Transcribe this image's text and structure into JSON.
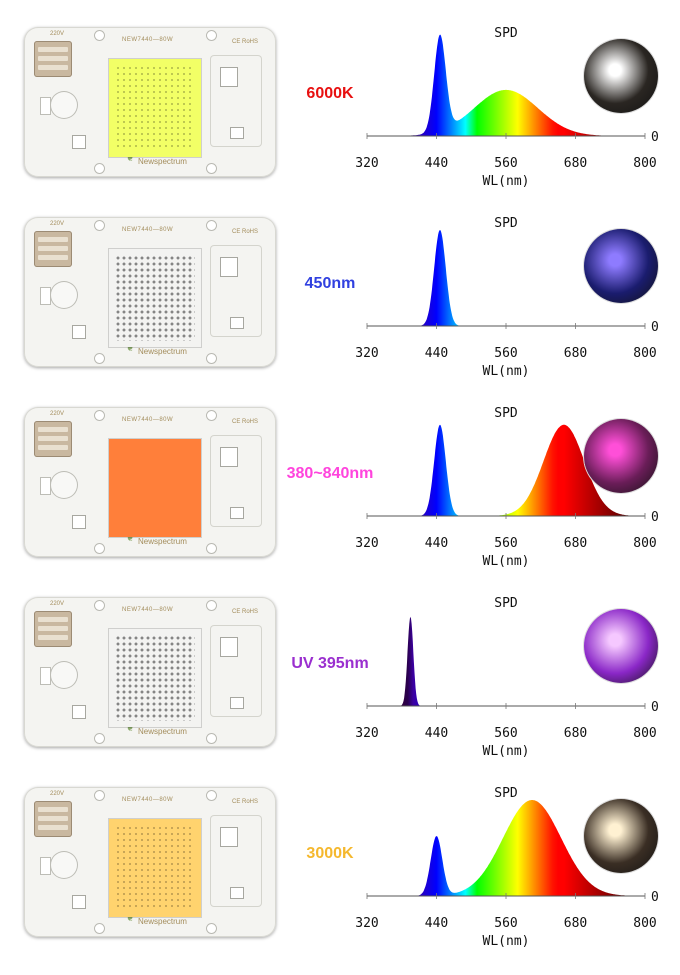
{
  "chart_data": [
    {
      "type": "area",
      "title": "SPD",
      "xlabel": "WL(nm)",
      "ylabel": "",
      "x_ticks": [
        320,
        440,
        560,
        680,
        800
      ],
      "xlim": [
        320,
        800
      ],
      "y_tick_label": "0",
      "series": [
        {
          "peaks": [
            {
              "center": 446,
              "height": 1.0,
              "width": 10
            },
            {
              "center": 560,
              "height": 0.48,
              "width": 55
            }
          ]
        }
      ],
      "spec_label": "6000K",
      "spec_label_color": "#e81010",
      "chip_color": "#f2ff66",
      "chip_grid": true,
      "chip_present": true,
      "photo": {
        "bg": "#2a2622",
        "glow": "#ffffff"
      }
    },
    {
      "type": "area",
      "title": "SPD",
      "xlabel": "WL(nm)",
      "ylabel": "",
      "x_ticks": [
        320,
        440,
        560,
        680,
        800
      ],
      "xlim": [
        320,
        800
      ],
      "y_tick_label": "0",
      "series": [
        {
          "peaks": [
            {
              "center": 446,
              "height": 1.0,
              "width": 10
            }
          ]
        }
      ],
      "spec_label": "450nm",
      "spec_label_color": "#3040e0",
      "chip_color": "#f0f0ee",
      "chip_grid": true,
      "chip_present": false,
      "photo": {
        "bg": "#1a1c6e",
        "glow": "#8e7bff"
      }
    },
    {
      "type": "area",
      "title": "SPD",
      "xlabel": "WL(nm)",
      "ylabel": "",
      "x_ticks": [
        320,
        440,
        560,
        680,
        800
      ],
      "xlim": [
        320,
        800
      ],
      "y_tick_label": "0",
      "series": [
        {
          "peaks": [
            {
              "center": 446,
              "height": 0.95,
              "width": 10
            },
            {
              "center": 660,
              "height": 0.95,
              "width": 35
            }
          ]
        }
      ],
      "spec_label": "380~840nm",
      "spec_label_color": "#ff44dd",
      "chip_color": "#ff7f3a",
      "chip_grid": false,
      "chip_present": true,
      "photo": {
        "bg": "#6a1d58",
        "glow": "#ff4fd8"
      }
    },
    {
      "type": "area",
      "title": "SPD",
      "xlabel": "WL(nm)",
      "ylabel": "",
      "x_ticks": [
        320,
        440,
        560,
        680,
        800
      ],
      "xlim": [
        320,
        800
      ],
      "y_tick_label": "0",
      "series": [
        {
          "peaks": [
            {
              "center": 395,
              "height": 0.93,
              "width": 5
            }
          ]
        }
      ],
      "spec_label": "UV 395nm",
      "spec_label_color": "#9a2fcf",
      "chip_color": "#f0f0ee",
      "chip_grid": true,
      "chip_present": false,
      "photo": {
        "bg": "#8a27c7",
        "glow": "#f5c8ff"
      }
    },
    {
      "type": "area",
      "title": "SPD",
      "xlabel": "WL(nm)",
      "ylabel": "",
      "x_ticks": [
        320,
        440,
        560,
        680,
        800
      ],
      "xlim": [
        320,
        800
      ],
      "y_tick_label": "0",
      "series": [
        {
          "peaks": [
            {
              "center": 440,
              "height": 0.62,
              "width": 10
            },
            {
              "center": 605,
              "height": 1.0,
              "width": 50
            }
          ]
        }
      ],
      "spec_label": "3000K",
      "spec_label_color": "#f5b82e",
      "chip_color": "#ffd36e",
      "chip_grid": true,
      "chip_present": true,
      "photo": {
        "bg": "#3a2e24",
        "glow": "#fff1d2"
      }
    }
  ],
  "board": {
    "voltage": "220V",
    "model": "NEW7440—80W",
    "cert": "CE RoHS",
    "brand": "Newspectrum"
  }
}
